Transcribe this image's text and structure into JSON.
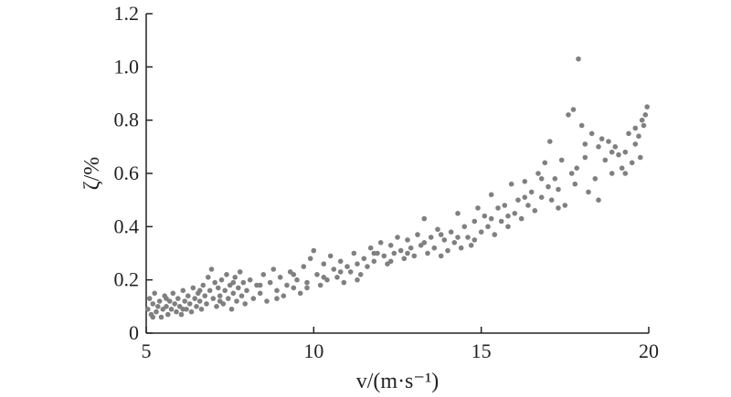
{
  "chart_data": {
    "type": "scatter",
    "title": "",
    "xlabel": "v/(m·s⁻¹)",
    "ylabel": "ζ/%",
    "xlim": [
      5,
      20
    ],
    "ylim": [
      0,
      1.2
    ],
    "x_ticks": [
      5,
      10,
      15,
      20
    ],
    "x_tick_labels": [
      "5",
      "10",
      "15",
      "20"
    ],
    "y_ticks": [
      0,
      0.2,
      0.4,
      0.6,
      0.8,
      1.0,
      1.2
    ],
    "y_tick_labels": [
      "0",
      "0.2",
      "0.4",
      "0.6",
      "0.8",
      "1.0",
      "1.2"
    ],
    "grid": false,
    "marker_color": "#808080",
    "points": [
      [
        5.05,
        0.09
      ],
      [
        5.1,
        0.13
      ],
      [
        5.15,
        0.07
      ],
      [
        5.2,
        0.11
      ],
      [
        5.25,
        0.15
      ],
      [
        5.3,
        0.08
      ],
      [
        5.35,
        0.1
      ],
      [
        5.4,
        0.12
      ],
      [
        5.45,
        0.06
      ],
      [
        5.5,
        0.09
      ],
      [
        5.55,
        0.14
      ],
      [
        5.6,
        0.1
      ],
      [
        5.65,
        0.07
      ],
      [
        5.7,
        0.12
      ],
      [
        5.75,
        0.09
      ],
      [
        5.8,
        0.15
      ],
      [
        5.85,
        0.11
      ],
      [
        5.9,
        0.08
      ],
      [
        5.95,
        0.13
      ],
      [
        6.0,
        0.1
      ],
      [
        6.05,
        0.07
      ],
      [
        6.1,
        0.16
      ],
      [
        6.15,
        0.12
      ],
      [
        6.2,
        0.09
      ],
      [
        6.25,
        0.14
      ],
      [
        6.3,
        0.11
      ],
      [
        6.35,
        0.08
      ],
      [
        6.4,
        0.17
      ],
      [
        6.45,
        0.13
      ],
      [
        6.5,
        0.1
      ],
      [
        6.55,
        0.15
      ],
      [
        6.6,
        0.12
      ],
      [
        6.65,
        0.09
      ],
      [
        6.7,
        0.18
      ],
      [
        6.75,
        0.14
      ],
      [
        6.8,
        0.11
      ],
      [
        6.85,
        0.21
      ],
      [
        6.9,
        0.16
      ],
      [
        6.95,
        0.24
      ],
      [
        7.0,
        0.13
      ],
      [
        7.05,
        0.19
      ],
      [
        7.1,
        0.1
      ],
      [
        7.15,
        0.17
      ],
      [
        7.2,
        0.14
      ],
      [
        7.25,
        0.2
      ],
      [
        7.3,
        0.11
      ],
      [
        7.35,
        0.16
      ],
      [
        7.4,
        0.22
      ],
      [
        7.45,
        0.13
      ],
      [
        7.5,
        0.18
      ],
      [
        7.55,
        0.09
      ],
      [
        7.6,
        0.15
      ],
      [
        7.65,
        0.21
      ],
      [
        7.7,
        0.12
      ],
      [
        7.75,
        0.17
      ],
      [
        7.8,
        0.23
      ],
      [
        7.85,
        0.14
      ],
      [
        7.9,
        0.19
      ],
      [
        7.95,
        0.11
      ],
      [
        8.0,
        0.16
      ],
      [
        8.1,
        0.2
      ],
      [
        8.2,
        0.13
      ],
      [
        8.3,
        0.18
      ],
      [
        8.4,
        0.15
      ],
      [
        8.5,
        0.22
      ],
      [
        8.6,
        0.12
      ],
      [
        8.7,
        0.19
      ],
      [
        8.8,
        0.24
      ],
      [
        8.9,
        0.16
      ],
      [
        9.0,
        0.21
      ],
      [
        9.1,
        0.14
      ],
      [
        9.2,
        0.18
      ],
      [
        9.3,
        0.23
      ],
      [
        9.4,
        0.17
      ],
      [
        9.5,
        0.2
      ],
      [
        9.6,
        0.15
      ],
      [
        9.7,
        0.25
      ],
      [
        9.8,
        0.19
      ],
      [
        9.9,
        0.28
      ],
      [
        10.0,
        0.31
      ],
      [
        10.1,
        0.22
      ],
      [
        10.2,
        0.18
      ],
      [
        10.3,
        0.26
      ],
      [
        10.4,
        0.2
      ],
      [
        10.5,
        0.29
      ],
      [
        10.6,
        0.24
      ],
      [
        10.7,
        0.21
      ],
      [
        10.8,
        0.27
      ],
      [
        10.9,
        0.19
      ],
      [
        11.0,
        0.25
      ],
      [
        11.1,
        0.23
      ],
      [
        11.2,
        0.3
      ],
      [
        11.3,
        0.26
      ],
      [
        11.4,
        0.22
      ],
      [
        11.5,
        0.28
      ],
      [
        11.6,
        0.25
      ],
      [
        11.7,
        0.32
      ],
      [
        11.8,
        0.27
      ],
      [
        11.9,
        0.3
      ],
      [
        12.0,
        0.34
      ],
      [
        12.1,
        0.29
      ],
      [
        12.2,
        0.26
      ],
      [
        12.3,
        0.33
      ],
      [
        12.4,
        0.3
      ],
      [
        12.5,
        0.36
      ],
      [
        12.6,
        0.31
      ],
      [
        12.7,
        0.28
      ],
      [
        12.8,
        0.35
      ],
      [
        12.9,
        0.32
      ],
      [
        13.0,
        0.29
      ],
      [
        13.1,
        0.37
      ],
      [
        13.2,
        0.33
      ],
      [
        13.3,
        0.43
      ],
      [
        13.4,
        0.3
      ],
      [
        13.5,
        0.36
      ],
      [
        13.6,
        0.32
      ],
      [
        13.7,
        0.39
      ],
      [
        13.8,
        0.29
      ],
      [
        13.9,
        0.35
      ],
      [
        14.0,
        0.31
      ],
      [
        14.1,
        0.38
      ],
      [
        14.2,
        0.34
      ],
      [
        14.3,
        0.45
      ],
      [
        14.4,
        0.32
      ],
      [
        14.5,
        0.4
      ],
      [
        14.6,
        0.36
      ],
      [
        14.7,
        0.33
      ],
      [
        14.8,
        0.42
      ],
      [
        14.9,
        0.47
      ],
      [
        15.0,
        0.38
      ],
      [
        15.1,
        0.44
      ],
      [
        15.2,
        0.4
      ],
      [
        15.3,
        0.52
      ],
      [
        15.4,
        0.37
      ],
      [
        15.5,
        0.47
      ],
      [
        15.6,
        0.42
      ],
      [
        15.7,
        0.48
      ],
      [
        15.8,
        0.4
      ],
      [
        15.9,
        0.56
      ],
      [
        16.0,
        0.45
      ],
      [
        16.1,
        0.5
      ],
      [
        16.2,
        0.43
      ],
      [
        16.3,
        0.57
      ],
      [
        16.4,
        0.48
      ],
      [
        16.5,
        0.53
      ],
      [
        16.6,
        0.46
      ],
      [
        16.7,
        0.6
      ],
      [
        16.8,
        0.51
      ],
      [
        16.9,
        0.64
      ],
      [
        17.0,
        0.55
      ],
      [
        17.05,
        0.72
      ],
      [
        17.1,
        0.5
      ],
      [
        17.2,
        0.58
      ],
      [
        17.3,
        0.54
      ],
      [
        17.4,
        0.65
      ],
      [
        17.5,
        0.48
      ],
      [
        17.6,
        0.82
      ],
      [
        17.7,
        0.6
      ],
      [
        17.75,
        0.84
      ],
      [
        17.8,
        0.56
      ],
      [
        17.85,
        0.62
      ],
      [
        17.9,
        1.03
      ],
      [
        18.0,
        0.78
      ],
      [
        18.1,
        0.66
      ],
      [
        18.2,
        0.53
      ],
      [
        18.3,
        0.75
      ],
      [
        18.4,
        0.58
      ],
      [
        18.5,
        0.7
      ],
      [
        18.6,
        0.73
      ],
      [
        18.7,
        0.65
      ],
      [
        18.8,
        0.72
      ],
      [
        18.9,
        0.6
      ],
      [
        19.0,
        0.7
      ],
      [
        19.1,
        0.67
      ],
      [
        19.2,
        0.62
      ],
      [
        19.3,
        0.68
      ],
      [
        19.4,
        0.75
      ],
      [
        19.5,
        0.64
      ],
      [
        19.6,
        0.77
      ],
      [
        19.7,
        0.74
      ],
      [
        19.75,
        0.66
      ],
      [
        19.8,
        0.8
      ],
      [
        19.85,
        0.78
      ],
      [
        19.9,
        0.82
      ],
      [
        19.95,
        0.85
      ],
      [
        5.2,
        0.06
      ],
      [
        5.6,
        0.13
      ],
      [
        6.1,
        0.09
      ],
      [
        6.6,
        0.16
      ],
      [
        7.2,
        0.12
      ],
      [
        7.6,
        0.19
      ],
      [
        8.4,
        0.18
      ],
      [
        8.9,
        0.13
      ],
      [
        9.4,
        0.22
      ],
      [
        9.8,
        0.17
      ],
      [
        10.3,
        0.21
      ],
      [
        10.8,
        0.23
      ],
      [
        11.3,
        0.2
      ],
      [
        11.8,
        0.3
      ],
      [
        12.3,
        0.27
      ],
      [
        12.8,
        0.3
      ],
      [
        13.3,
        0.34
      ],
      [
        13.8,
        0.37
      ],
      [
        14.3,
        0.36
      ],
      [
        14.8,
        0.35
      ],
      [
        15.3,
        0.43
      ],
      [
        15.8,
        0.44
      ],
      [
        16.3,
        0.51
      ],
      [
        16.8,
        0.58
      ],
      [
        17.3,
        0.47
      ],
      [
        18.1,
        0.71
      ],
      [
        18.5,
        0.5
      ],
      [
        18.9,
        0.68
      ],
      [
        19.3,
        0.6
      ],
      [
        19.6,
        0.71
      ]
    ]
  }
}
